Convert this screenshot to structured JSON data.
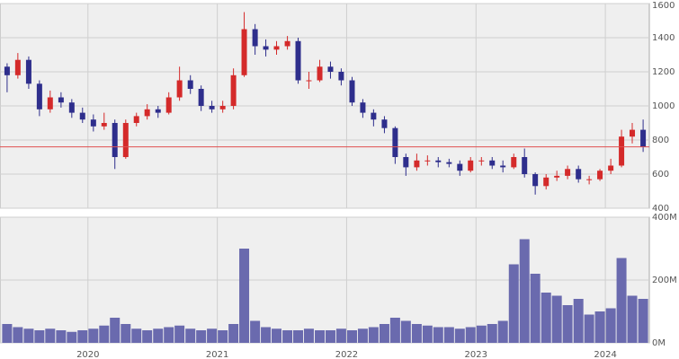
{
  "chart_data": [
    {
      "type": "candlestick",
      "x": [
        2019.375,
        2019.458,
        2019.542,
        2019.625,
        2019.708,
        2019.792,
        2019.875,
        2019.958,
        2020.042,
        2020.125,
        2020.208,
        2020.292,
        2020.375,
        2020.458,
        2020.542,
        2020.625,
        2020.708,
        2020.792,
        2020.875,
        2020.958,
        2021.042,
        2021.125,
        2021.208,
        2021.292,
        2021.375,
        2021.458,
        2021.542,
        2021.625,
        2021.708,
        2021.792,
        2021.875,
        2021.958,
        2022.042,
        2022.125,
        2022.208,
        2022.292,
        2022.375,
        2022.458,
        2022.542,
        2022.625,
        2022.708,
        2022.792,
        2022.875,
        2022.958,
        2023.042,
        2023.125,
        2023.208,
        2023.292,
        2023.375,
        2023.458,
        2023.542,
        2023.625,
        2023.708,
        2023.792,
        2023.875,
        2023.958,
        2024.042,
        2024.125,
        2024.208,
        2024.292
      ],
      "open": [
        1230,
        1180,
        1270,
        1130,
        980,
        1050,
        1020,
        960,
        920,
        880,
        900,
        700,
        900,
        940,
        980,
        960,
        1050,
        1150,
        1100,
        1000,
        980,
        1000,
        1180,
        1450,
        1350,
        1330,
        1350,
        1380,
        1150,
        1150,
        1230,
        1200,
        1150,
        1020,
        960,
        920,
        870,
        700,
        640,
        680,
        680,
        670,
        660,
        620,
        680,
        680,
        650,
        640,
        700,
        600,
        530,
        580,
        590,
        630,
        570,
        570,
        620,
        650,
        820,
        860
      ],
      "high": [
        1250,
        1310,
        1290,
        1150,
        1090,
        1080,
        1040,
        990,
        950,
        960,
        920,
        920,
        960,
        1010,
        1000,
        1080,
        1230,
        1180,
        1120,
        1030,
        1030,
        1220,
        1550,
        1480,
        1390,
        1380,
        1410,
        1400,
        1200,
        1270,
        1260,
        1220,
        1170,
        1040,
        980,
        940,
        880,
        720,
        720,
        710,
        700,
        690,
        680,
        700,
        700,
        700,
        680,
        720,
        750,
        610,
        600,
        620,
        650,
        650,
        590,
        630,
        690,
        860,
        900,
        920
      ],
      "low": [
        1080,
        1160,
        1100,
        940,
        960,
        990,
        930,
        900,
        850,
        860,
        630,
        690,
        880,
        920,
        930,
        950,
        1030,
        1070,
        970,
        960,
        960,
        980,
        1170,
        1300,
        1290,
        1300,
        1330,
        1130,
        1100,
        1140,
        1160,
        1120,
        1000,
        930,
        880,
        840,
        660,
        590,
        620,
        650,
        640,
        640,
        590,
        610,
        650,
        630,
        610,
        630,
        580,
        480,
        510,
        560,
        570,
        550,
        540,
        560,
        600,
        640,
        780,
        730
      ],
      "close": [
        1180,
        1270,
        1130,
        980,
        1050,
        1020,
        960,
        920,
        880,
        900,
        700,
        900,
        940,
        980,
        960,
        1050,
        1150,
        1100,
        1000,
        980,
        1000,
        1180,
        1450,
        1350,
        1330,
        1350,
        1380,
        1150,
        1150,
        1230,
        1200,
        1150,
        1020,
        960,
        920,
        870,
        700,
        640,
        680,
        680,
        670,
        660,
        620,
        680,
        680,
        650,
        640,
        700,
        600,
        530,
        580,
        590,
        630,
        570,
        570,
        620,
        650,
        820,
        860,
        760
      ],
      "up_color": "#d42a2a",
      "down_color": "#2e2e8c",
      "hline": 760,
      "hline_color": "#e05050",
      "xlim": [
        2019.32,
        2024.34
      ],
      "xticks": [
        2020,
        2021,
        2022,
        2023,
        2024
      ],
      "ylim": [
        400,
        1600
      ],
      "yticks": [
        400,
        600,
        800,
        1000,
        1200,
        1400,
        1600
      ],
      "grid": true
    },
    {
      "type": "bar",
      "x": [
        2019.375,
        2019.458,
        2019.542,
        2019.625,
        2019.708,
        2019.792,
        2019.875,
        2019.958,
        2020.042,
        2020.125,
        2020.208,
        2020.292,
        2020.375,
        2020.458,
        2020.542,
        2020.625,
        2020.708,
        2020.792,
        2020.875,
        2020.958,
        2021.042,
        2021.125,
        2021.208,
        2021.292,
        2021.375,
        2021.458,
        2021.542,
        2021.625,
        2021.708,
        2021.792,
        2021.875,
        2021.958,
        2022.042,
        2022.125,
        2022.208,
        2022.292,
        2022.375,
        2022.458,
        2022.542,
        2022.625,
        2022.708,
        2022.792,
        2022.875,
        2022.958,
        2023.042,
        2023.125,
        2023.208,
        2023.292,
        2023.375,
        2023.458,
        2023.542,
        2023.625,
        2023.708,
        2023.792,
        2023.875,
        2023.958,
        2024.042,
        2024.125,
        2024.208,
        2024.292
      ],
      "values": [
        60,
        50,
        45,
        40,
        45,
        40,
        35,
        40,
        45,
        55,
        80,
        60,
        45,
        40,
        45,
        50,
        55,
        45,
        40,
        45,
        40,
        60,
        300,
        70,
        50,
        45,
        40,
        40,
        45,
        40,
        40,
        45,
        40,
        45,
        50,
        60,
        80,
        70,
        60,
        55,
        50,
        50,
        45,
        50,
        55,
        60,
        70,
        250,
        330,
        220,
        160,
        150,
        120,
        140,
        90,
        100,
        110,
        270,
        150,
        140
      ],
      "color": "#6a6aae",
      "xlim": [
        2019.32,
        2024.34
      ],
      "xticks": [
        2020,
        2021,
        2022,
        2023,
        2024
      ],
      "ylim": [
        0,
        400
      ],
      "yticks": [
        {
          "value": 0,
          "label": "0M"
        },
        {
          "value": 200,
          "label": "200M"
        },
        {
          "value": 400,
          "label": "400M"
        }
      ],
      "grid": true
    }
  ]
}
